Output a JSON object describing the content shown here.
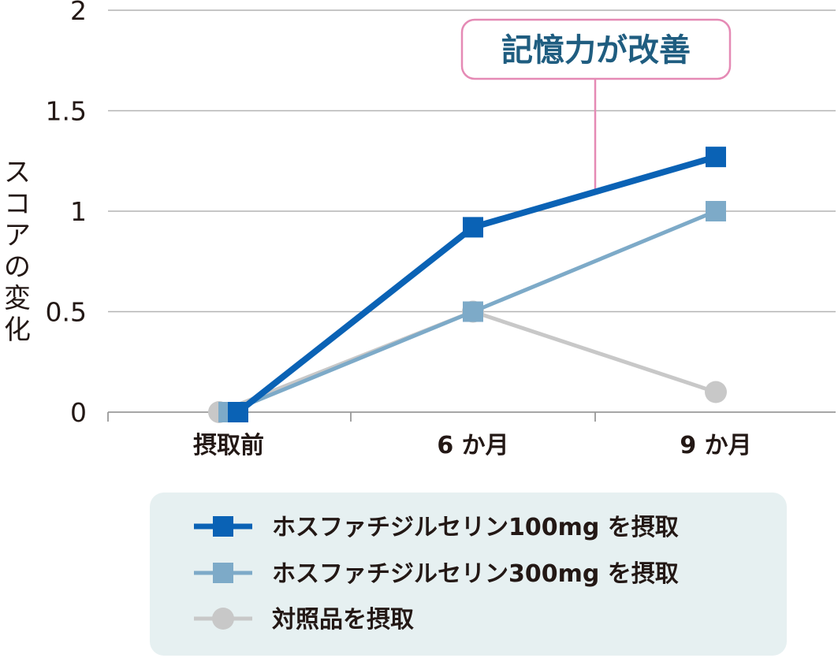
{
  "chart_data": {
    "type": "line",
    "categories": [
      "摂取前",
      "6 か月",
      "9 か月"
    ],
    "ylabel": "スコアの変化",
    "ylim": [
      0,
      2
    ],
    "yticks": [
      "0",
      "0.5",
      "1",
      "1.5",
      "2"
    ],
    "grid": true,
    "legend_position": "bottom",
    "annotation": {
      "text": "記憶力が改善",
      "target_series": 0
    },
    "series": [
      {
        "name": "ホスファチジルセリン100mg を摂取",
        "values": [
          0,
          0.92,
          1.27
        ],
        "color": "#0a62b5",
        "marker": "square"
      },
      {
        "name": "ホスファチジルセリン300mg を摂取",
        "values": [
          0,
          0.5,
          1.0
        ],
        "color": "#7daac8",
        "marker": "square"
      },
      {
        "name": "対照品を摂取",
        "values": [
          0,
          0.5,
          0.1
        ],
        "color": "#c8c8c8",
        "marker": "circle"
      }
    ]
  }
}
